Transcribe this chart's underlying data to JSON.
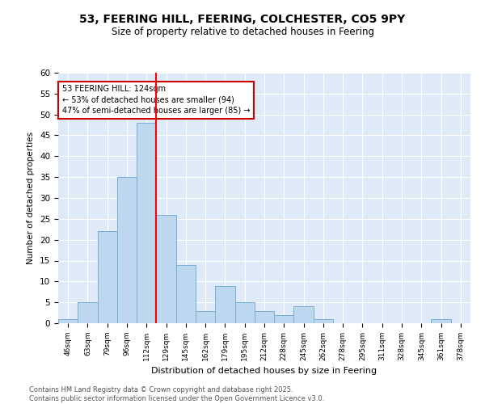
{
  "title_line1": "53, FEERING HILL, FEERING, COLCHESTER, CO5 9PY",
  "title_line2": "Size of property relative to detached houses in Feering",
  "xlabel": "Distribution of detached houses by size in Feering",
  "ylabel": "Number of detached properties",
  "bin_labels": [
    "46sqm",
    "63sqm",
    "79sqm",
    "96sqm",
    "112sqm",
    "129sqm",
    "145sqm",
    "162sqm",
    "179sqm",
    "195sqm",
    "212sqm",
    "228sqm",
    "245sqm",
    "262sqm",
    "278sqm",
    "295sqm",
    "311sqm",
    "328sqm",
    "345sqm",
    "361sqm",
    "378sqm"
  ],
  "bar_values": [
    1,
    5,
    22,
    35,
    48,
    26,
    14,
    3,
    9,
    5,
    3,
    2,
    4,
    1,
    0,
    0,
    0,
    0,
    0,
    1,
    0
  ],
  "bar_color": "#bdd7ee",
  "bar_edge_color": "#7bafd4",
  "vline_color": "#ff0000",
  "vline_bin_index": 5,
  "annotation_text": "53 FEERING HILL: 124sqm\n← 53% of detached houses are smaller (94)\n47% of semi-detached houses are larger (85) →",
  "annotation_box_color": "#ffffff",
  "annotation_box_edge": "#cc0000",
  "ylim": [
    0,
    60
  ],
  "yticks": [
    0,
    5,
    10,
    15,
    20,
    25,
    30,
    35,
    40,
    45,
    50,
    55,
    60
  ],
  "bg_color": "#deeaf7",
  "footer_text": "Contains HM Land Registry data © Crown copyright and database right 2025.\nContains public sector information licensed under the Open Government Licence v3.0.",
  "fig_width": 6.0,
  "fig_height": 5.0
}
